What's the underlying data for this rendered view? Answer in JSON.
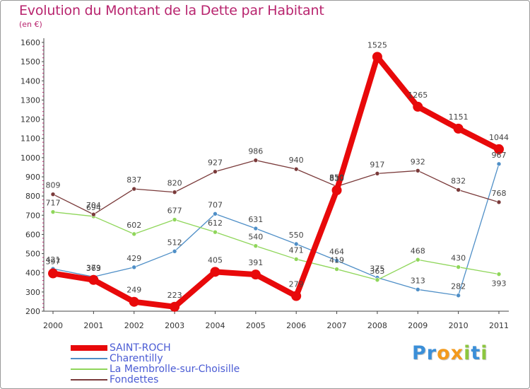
{
  "chart_data": {
    "type": "line",
    "title": "Evolution du Montant de la Dette par Habitant",
    "subtitle": "(en €)",
    "x": [
      "2000",
      "2001",
      "2002",
      "2003",
      "2004",
      "2005",
      "2006",
      "2007",
      "2008",
      "2009",
      "2010",
      "2011"
    ],
    "ylim": [
      200,
      1600
    ],
    "yticks": [
      200,
      300,
      400,
      500,
      600,
      700,
      800,
      900,
      1000,
      1100,
      1200,
      1300,
      1400,
      1500,
      1600
    ],
    "grid": false,
    "legend_position": "bottom-left",
    "series": [
      {
        "name": "SAINT-ROCH",
        "color": "#e8090a",
        "emphasis": true,
        "values": [
          397,
          363,
          249,
          223,
          405,
          391,
          279,
          830,
          1525,
          1265,
          1151,
          1044
        ],
        "labels": [
          "397",
          "363",
          "249",
          "223",
          "405",
          "391",
          "279",
          "830",
          "1525",
          "1265",
          "1151",
          "1044"
        ]
      },
      {
        "name": "Charentilly",
        "color": "#4f8fc7",
        "values": [
          421,
          379,
          429,
          512,
          707,
          631,
          550,
          464,
          375,
          313,
          282,
          967
        ],
        "labels": [
          "421",
          "379",
          "429",
          "512",
          "707",
          "631",
          "550",
          "464",
          "375",
          "313",
          "282",
          "967"
        ]
      },
      {
        "name": "La Membrolle-sur-Choisille",
        "color": "#8fd65a",
        "values": [
          717,
          694,
          602,
          677,
          612,
          540,
          471,
          419,
          363,
          468,
          430,
          393
        ],
        "labels": [
          "717",
          "694",
          "602",
          "677",
          "612",
          "540",
          "471",
          "419",
          "363",
          "468",
          "430",
          "393"
        ]
      },
      {
        "name": "Fondettes",
        "color": "#7a3a3a",
        "values": [
          809,
          704,
          837,
          820,
          927,
          986,
          940,
          850,
          917,
          932,
          832,
          768
        ],
        "labels": [
          "809",
          "704",
          "837",
          "820",
          "927",
          "986",
          "940",
          "850",
          "917",
          "932",
          "832",
          "768"
        ]
      }
    ]
  },
  "brand": {
    "letters": [
      {
        "char": "P",
        "color": "#3b8fd8"
      },
      {
        "char": "r",
        "color": "#3b8fd8"
      },
      {
        "char": "o",
        "color": "#f39a1c"
      },
      {
        "char": "x",
        "color": "#f39a1c"
      },
      {
        "char": "i",
        "color": "#8cc63e"
      },
      {
        "char": "t",
        "color": "#3b8fd8"
      },
      {
        "char": "i",
        "color": "#8cc63e"
      }
    ]
  }
}
